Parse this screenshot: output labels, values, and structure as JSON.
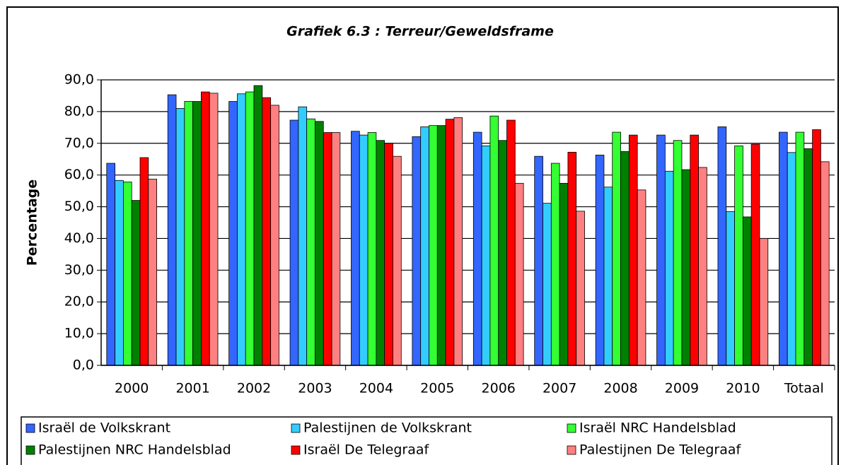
{
  "chart_data": {
    "type": "bar",
    "title": "Grafiek 6.3 : Terreur/Geweldsframe",
    "y_label": "Percentage",
    "categories": [
      "2000",
      "2001",
      "2002",
      "2003",
      "2004",
      "2005",
      "2006",
      "2007",
      "2008",
      "2009",
      "2010",
      "Totaal"
    ],
    "series": [
      {
        "name": "Israël de Volkskrant",
        "color": "#3366ff",
        "values": [
          63.7,
          85.3,
          83.2,
          77.3,
          73.8,
          72.1,
          73.5,
          65.9,
          66.3,
          72.6,
          75.2,
          73.5
        ]
      },
      {
        "name": "Palestijnen de Volkskrant",
        "color": "#33ccff",
        "values": [
          58.3,
          81.0,
          85.6,
          81.5,
          72.6,
          75.2,
          69.2,
          51.1,
          56.2,
          61.2,
          48.5,
          67.1
        ]
      },
      {
        "name": "Israël NRC Handelsblad",
        "color": "#33ff33",
        "values": [
          57.8,
          83.2,
          86.2,
          77.7,
          73.4,
          75.6,
          78.6,
          63.7,
          73.5,
          70.9,
          69.2,
          73.5
        ]
      },
      {
        "name": "Palestijnen NRC Handelsblad",
        "color": "#008000",
        "values": [
          52.0,
          83.2,
          88.2,
          76.9,
          70.9,
          75.6,
          70.9,
          57.4,
          67.4,
          61.7,
          46.8,
          68.3
        ]
      },
      {
        "name": "Israël De Telegraaf",
        "color": "#ff0000",
        "values": [
          65.5,
          86.2,
          84.4,
          73.4,
          70.0,
          77.6,
          77.3,
          67.2,
          72.6,
          72.6,
          69.7,
          74.3
        ]
      },
      {
        "name": "Palestijnen De Telegraaf",
        "color": "#ff8080",
        "values": [
          58.7,
          85.8,
          82.0,
          73.4,
          65.9,
          78.1,
          57.4,
          48.6,
          55.3,
          62.4,
          40.0,
          64.2
        ]
      }
    ],
    "ylim": [
      0,
      90
    ],
    "yticks": [
      {
        "value": 0,
        "label": "0,0"
      },
      {
        "value": 10,
        "label": "10,0"
      },
      {
        "value": 20,
        "label": "20,0"
      },
      {
        "value": 30,
        "label": "30,0"
      },
      {
        "value": 40,
        "label": "40,0"
      },
      {
        "value": 50,
        "label": "50,0"
      },
      {
        "value": 60,
        "label": "60,0"
      },
      {
        "value": 70,
        "label": "70,0"
      },
      {
        "value": 80,
        "label": "80,0"
      },
      {
        "value": 90,
        "label": "90,0"
      }
    ],
    "grid": true,
    "legend": "bottom"
  }
}
